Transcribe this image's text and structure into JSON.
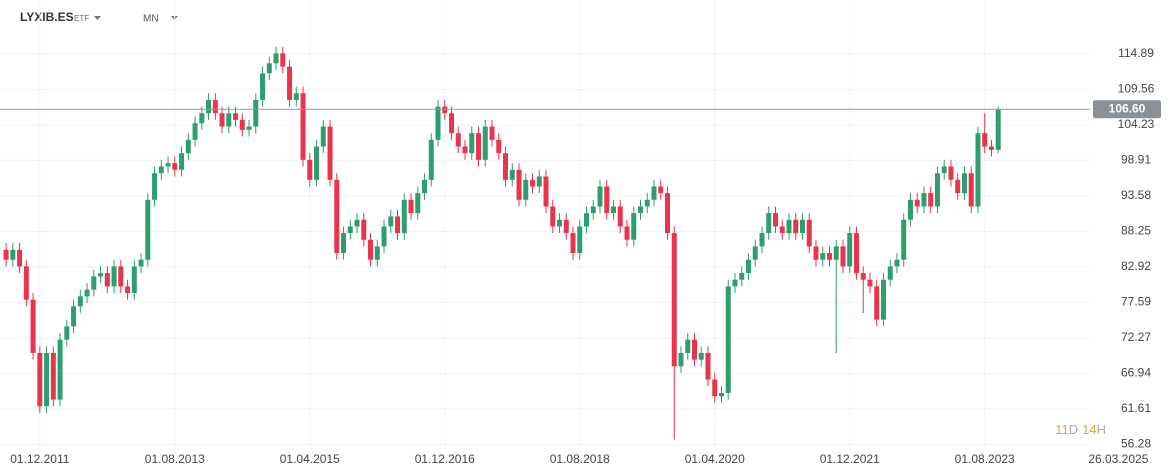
{
  "chart_data": {
    "type": "candlestick",
    "symbol": "LYXIB.ES",
    "instrument": "ETF",
    "interval": "MN",
    "countdown": {
      "days": "11",
      "day_unit": "D",
      "hours": "14",
      "hour_unit": "H"
    },
    "up_color": "#2f9e6e",
    "down_color": "#e8344c",
    "last_price": 106.6,
    "last_price_label": "106.60",
    "grid": true,
    "ylim": [
      55.43,
      123.0
    ],
    "yticks": [
      56.28,
      61.61,
      66.94,
      72.27,
      77.59,
      82.92,
      88.25,
      93.58,
      98.91,
      104.23,
      109.56,
      114.89
    ],
    "xlim": [
      -0.9,
      160.6
    ],
    "xticks": [
      {
        "value": 5,
        "label": "01.12.2011"
      },
      {
        "value": 25,
        "label": "01.08.2013"
      },
      {
        "value": 45,
        "label": "01.04.2015"
      },
      {
        "value": 65,
        "label": "01.12.2016"
      },
      {
        "value": 85,
        "label": "01.08.2018"
      },
      {
        "value": 105,
        "label": "01.04.2020"
      },
      {
        "value": 125,
        "label": "01.12.2021"
      },
      {
        "value": 145,
        "label": "01.08.2023"
      },
      {
        "value": 164.8,
        "label": "26.03.2025"
      }
    ],
    "open": [
      85.5,
      84,
      85.5,
      83,
      78,
      70,
      62,
      70,
      63,
      72,
      74,
      77,
      78.5,
      79.5,
      81.5,
      82,
      80,
      83,
      80,
      79,
      83,
      84,
      93,
      97,
      98,
      98.5,
      97.5,
      100,
      102,
      104.5,
      106,
      108,
      106,
      104,
      106,
      105,
      103.5,
      104,
      108,
      112,
      113.5,
      115,
      113,
      108,
      109,
      99,
      96,
      101,
      104,
      96,
      85,
      88,
      89,
      90,
      87,
      84,
      86,
      89,
      90.5,
      88,
      93,
      91,
      94,
      96,
      102,
      107,
      106,
      103,
      101,
      100,
      103,
      99,
      104,
      102,
      100,
      96,
      97.5,
      93,
      96,
      95,
      96.5,
      92,
      89,
      90,
      88,
      85,
      89,
      91,
      92,
      95,
      91,
      92,
      89,
      87,
      91,
      92,
      93,
      95,
      94,
      88,
      68,
      70,
      72,
      69,
      70,
      66,
      63.5,
      64,
      80,
      81,
      82,
      84,
      86,
      88,
      91,
      89,
      88,
      90,
      88,
      90,
      86,
      84,
      85,
      84,
      86,
      83,
      88,
      82,
      81,
      80,
      75,
      81,
      83,
      84,
      90,
      93,
      92,
      94,
      92,
      97,
      98,
      96,
      94,
      97,
      92,
      103,
      101,
      100.5
    ],
    "high": [
      86.5,
      86.5,
      86.5,
      84,
      79,
      71,
      71,
      71,
      73,
      75,
      78,
      79.5,
      80.5,
      82.5,
      83,
      83,
      84,
      84,
      81,
      84,
      85,
      94,
      98,
      99,
      99.5,
      99.5,
      101,
      103,
      105.5,
      107,
      109,
      109,
      107,
      107,
      107,
      106,
      105,
      109,
      113,
      114.5,
      116,
      116,
      114,
      110,
      110,
      100,
      102,
      105,
      105,
      97,
      89,
      90,
      91,
      91,
      88,
      87,
      90,
      91.5,
      91.5,
      94,
      94,
      95,
      97,
      103,
      108,
      108,
      107,
      104,
      102,
      104,
      104,
      105,
      105,
      103,
      101,
      98.5,
      98.5,
      97,
      97,
      97.5,
      97.5,
      93,
      91,
      91,
      89,
      90,
      92,
      93,
      96,
      96,
      93,
      93,
      90,
      92,
      93,
      94,
      96,
      96,
      95,
      89,
      71,
      73,
      73,
      71,
      71,
      67,
      65,
      81,
      82,
      83,
      85,
      87,
      89,
      92,
      92,
      90,
      91,
      91,
      91,
      91,
      87,
      86,
      86,
      87,
      87,
      89,
      89,
      83,
      82,
      81,
      82,
      84,
      85,
      91,
      94,
      94,
      95,
      95,
      98,
      99,
      99,
      97,
      98,
      98,
      104,
      106,
      102,
      107
    ],
    "low": [
      83,
      83,
      82,
      77,
      69,
      61,
      61,
      62,
      62,
      71,
      73,
      76,
      77.5,
      78.5,
      80.5,
      79,
      79,
      79,
      78,
      78,
      82,
      83,
      92,
      96,
      97,
      96.5,
      96.5,
      99,
      101,
      103.5,
      105,
      105,
      103,
      103,
      104,
      102.5,
      102.5,
      103,
      107,
      111,
      112.5,
      112,
      107,
      107,
      98,
      95,
      95,
      100,
      95,
      84,
      84,
      87,
      88,
      86,
      83,
      83,
      85,
      88,
      87,
      87,
      90,
      90,
      93,
      95,
      101,
      105,
      102,
      100,
      99,
      99,
      98,
      98,
      101,
      99,
      95,
      95,
      92,
      92,
      94,
      94,
      91,
      88,
      88,
      87,
      84,
      84,
      88,
      90,
      91,
      90,
      90,
      88,
      86,
      86,
      90,
      91,
      92,
      93,
      87,
      57,
      67,
      69,
      68,
      68,
      65,
      62.5,
      62.5,
      63,
      79,
      80,
      81,
      83,
      85,
      87,
      88,
      87,
      87,
      87,
      87,
      85,
      83,
      83,
      83,
      70,
      82,
      82,
      81,
      76,
      79,
      74,
      74,
      80,
      82,
      83,
      89,
      91,
      91,
      91,
      91,
      96,
      95,
      93,
      93,
      91,
      91,
      100,
      99.5,
      100
    ],
    "close": [
      84,
      85.5,
      83,
      78,
      70,
      62,
      70,
      63,
      72,
      74,
      77,
      78.5,
      79.5,
      81.5,
      82,
      80,
      83,
      80,
      79,
      83,
      84,
      93,
      97,
      98,
      98.5,
      97.5,
      100,
      102,
      104.5,
      106,
      108,
      106,
      104,
      106,
      105,
      103.5,
      104,
      108,
      112,
      113.5,
      115,
      113,
      108,
      109,
      99,
      96,
      101,
      104,
      96,
      85,
      88,
      89,
      90,
      87,
      84,
      86,
      89,
      90.5,
      88,
      93,
      91,
      94,
      96,
      102,
      107,
      106,
      103,
      101,
      100,
      103,
      99,
      104,
      102,
      100,
      96,
      97.5,
      93,
      96,
      95,
      96.5,
      92,
      89,
      90,
      88,
      85,
      89,
      91,
      92,
      95,
      91,
      92,
      89,
      87,
      91,
      92,
      93,
      95,
      94,
      88,
      68,
      70,
      72,
      69,
      70,
      66,
      63.5,
      64,
      80,
      81,
      82,
      84,
      86,
      88,
      91,
      89,
      88,
      90,
      88,
      90,
      86,
      84,
      85,
      84,
      86,
      83,
      88,
      82,
      81,
      80,
      75,
      81,
      83,
      84,
      90,
      93,
      92,
      94,
      92,
      97,
      98,
      96,
      94,
      97,
      92,
      103,
      101,
      100.5,
      106.6
    ]
  }
}
